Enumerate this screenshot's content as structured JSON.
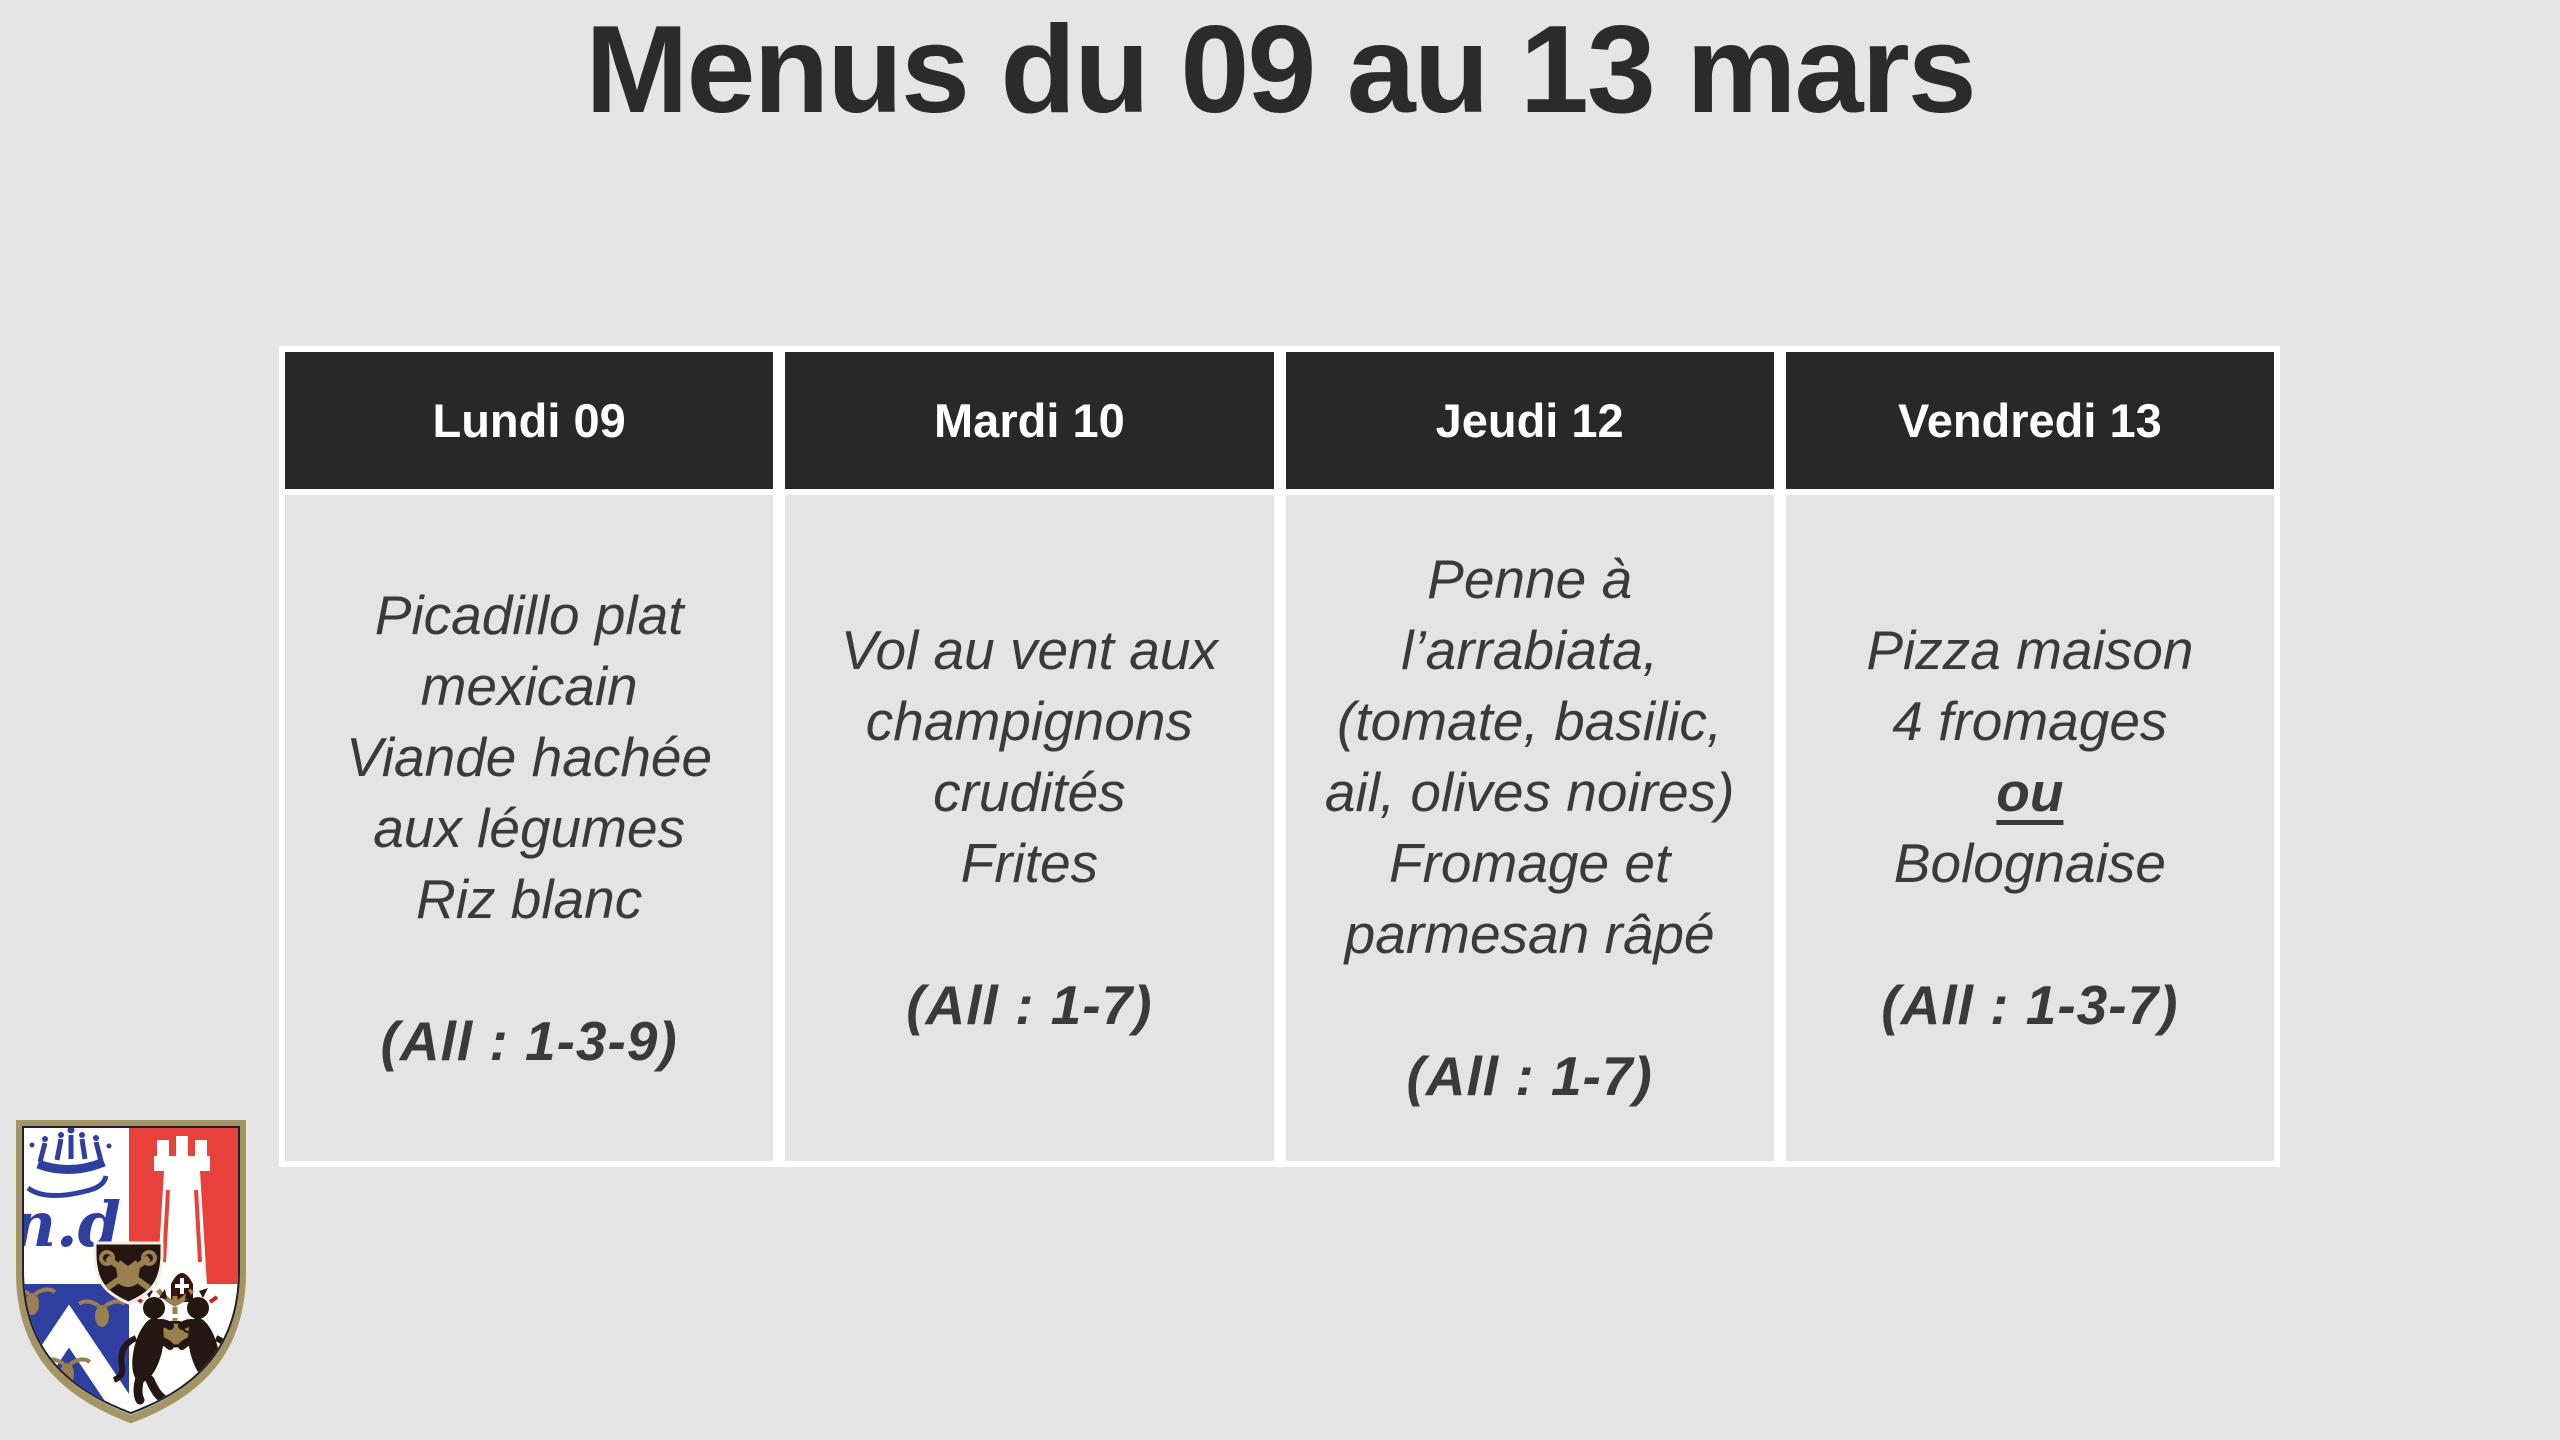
{
  "title": "Menus du 09 au 13 mars",
  "colors": {
    "page_bg": "#e5e5e5",
    "table_border": "#ffffff",
    "header_bg": "#282828",
    "header_text": "#ffffff",
    "cell_bg": "#e4e4e4",
    "body_text": "#3a3a3a",
    "title_text": "#2b2b2b",
    "crest_red": "#e8403a",
    "crest_blue": "#2f3f9f",
    "crest_gold": "#9b7f4e",
    "crest_dark": "#241712",
    "crest_rim": "#a39565"
  },
  "table": {
    "columns": [
      {
        "header": "Lundi 09",
        "lines": [
          {
            "text": "Picadillo plat"
          },
          {
            "text": "mexicain"
          },
          {
            "text": "Viande hachée"
          },
          {
            "text": "aux légumes"
          },
          {
            "text": "Riz blanc"
          }
        ],
        "allergens": "(All : 1-3-9)"
      },
      {
        "header": "Mardi 10",
        "lines": [
          {
            "text": "Vol au vent aux"
          },
          {
            "text": "champignons"
          },
          {
            "text": "crudités"
          },
          {
            "text": "Frites"
          }
        ],
        "allergens": "(All : 1-7)"
      },
      {
        "header": "Jeudi 12",
        "lines": [
          {
            "text": "Penne à"
          },
          {
            "text": "l’arrabiata,"
          },
          {
            "text": "(tomate, basilic,"
          },
          {
            "text": "ail, olives noires)"
          },
          {
            "text": "Fromage et"
          },
          {
            "text": "parmesan râpé"
          }
        ],
        "allergens": "(All : 1-7)"
      },
      {
        "header": "Vendredi 13",
        "lines": [
          {
            "text": "Pizza maison"
          },
          {
            "text": "4 fromages"
          },
          {
            "text": "ou",
            "emphasis": true
          },
          {
            "text": "Bolognaise"
          }
        ],
        "allergens": "(All : 1-3-7)"
      }
    ]
  },
  "logo": {
    "monogram": "n.d"
  }
}
